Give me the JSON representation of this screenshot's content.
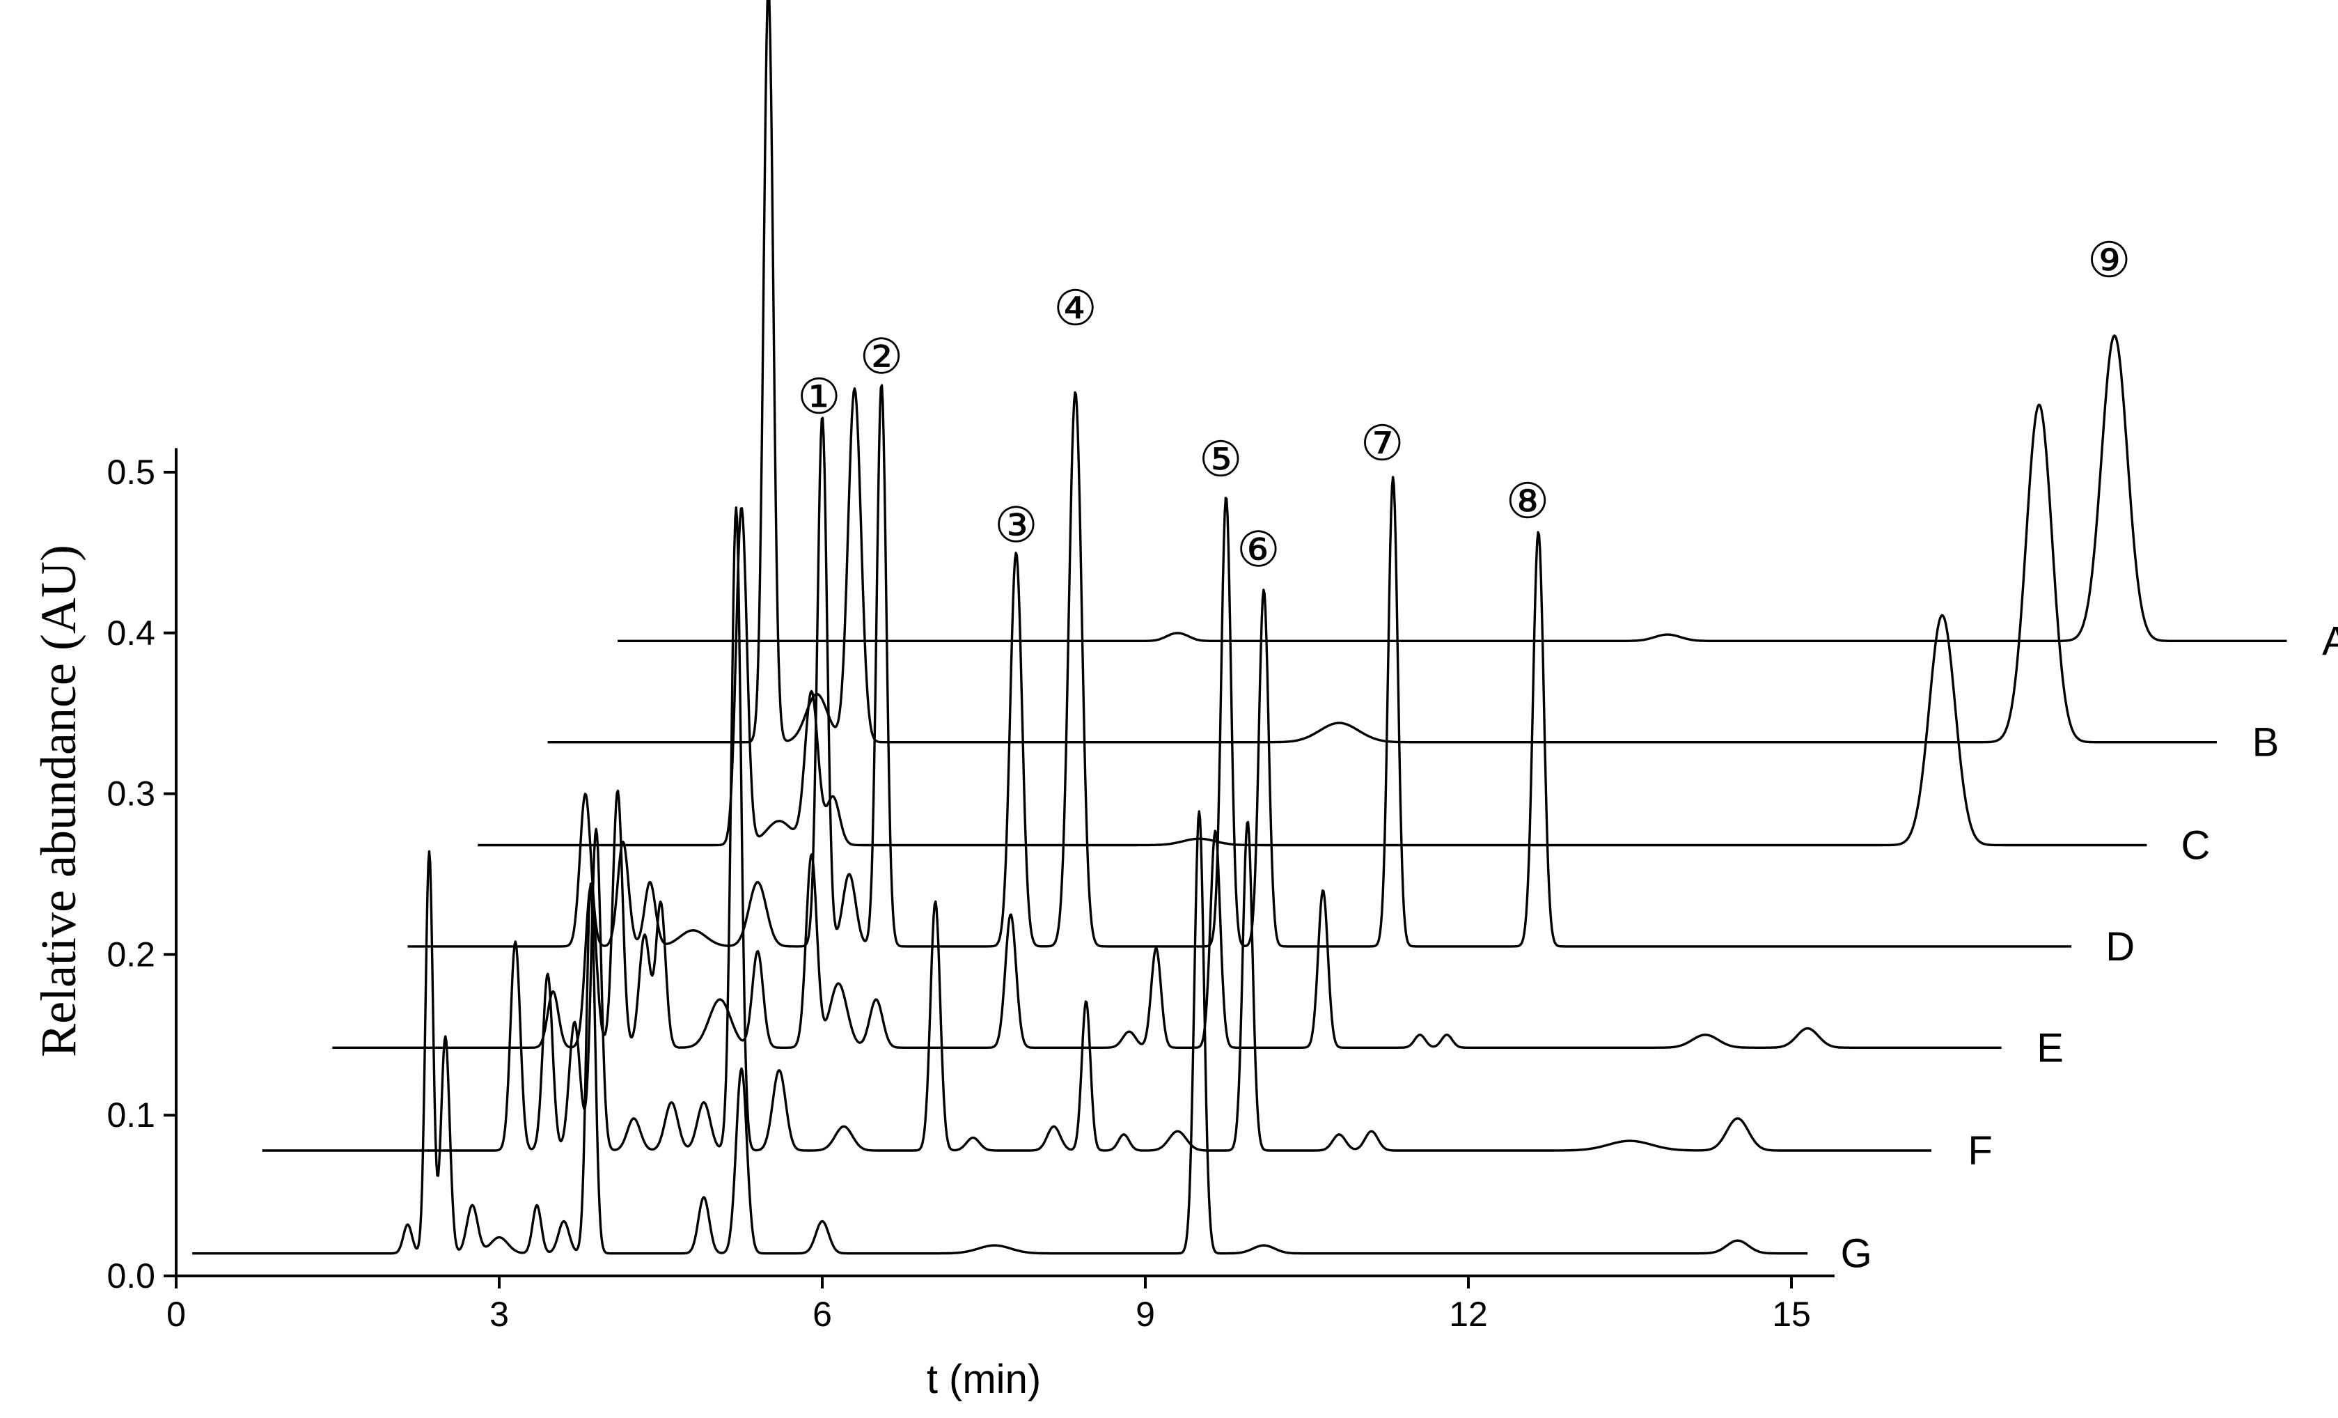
{
  "chart_data": {
    "type": "line",
    "title": "",
    "xlabel": "t (min)",
    "ylabel": "Relative abundance (AU)",
    "xlim": [
      0,
      15.4
    ],
    "ylim": [
      0,
      0.5
    ],
    "x_ticks": [
      "0",
      "3",
      "6",
      "9",
      "12",
      "15"
    ],
    "y_ticks": [
      "0.0",
      "0.1",
      "0.2",
      "0.3",
      "0.4",
      "0.5"
    ],
    "grid": false,
    "legend": "none",
    "stacked_offset": true,
    "series": [
      {
        "label": "A",
        "x_start": 4.1,
        "x_end": 19.6,
        "baseline": 0.395,
        "peaks": [
          [
            9.25,
            0.003,
            0.08
          ],
          [
            9.35,
            0.003,
            0.08
          ],
          [
            13.85,
            0.004,
            0.12
          ],
          [
            18.0,
            0.19,
            0.12
          ]
        ]
      },
      {
        "label": "B",
        "x_start": 3.45,
        "x_end": 18.95,
        "baseline": 0.332,
        "peaks": [
          [
            5.5,
            0.47,
            0.045
          ],
          [
            5.95,
            0.03,
            0.1
          ],
          [
            6.3,
            0.22,
            0.06
          ],
          [
            10.8,
            0.012,
            0.18
          ],
          [
            17.3,
            0.21,
            0.12
          ]
        ]
      },
      {
        "label": "C",
        "x_start": 2.8,
        "x_end": 18.3,
        "baseline": 0.268,
        "peaks": [
          [
            5.25,
            0.21,
            0.05
          ],
          [
            5.6,
            0.015,
            0.12
          ],
          [
            5.9,
            0.095,
            0.06
          ],
          [
            6.1,
            0.03,
            0.06
          ],
          [
            9.5,
            0.004,
            0.15
          ],
          [
            16.4,
            0.143,
            0.12
          ]
        ]
      },
      {
        "label": "D",
        "x_start": 2.15,
        "x_end": 17.6,
        "baseline": 0.205,
        "peaks": [
          [
            3.8,
            0.095,
            0.05
          ],
          [
            4.15,
            0.065,
            0.05
          ],
          [
            4.4,
            0.04,
            0.05
          ],
          [
            4.8,
            0.01,
            0.12
          ],
          [
            5.4,
            0.04,
            0.08
          ],
          [
            6.0,
            0.33,
            0.045
          ],
          [
            6.25,
            0.045,
            0.06
          ],
          [
            6.55,
            0.35,
            0.045
          ],
          [
            7.8,
            0.245,
            0.055
          ],
          [
            8.35,
            0.345,
            0.06
          ],
          [
            9.75,
            0.28,
            0.045
          ],
          [
            10.1,
            0.222,
            0.045
          ],
          [
            11.3,
            0.292,
            0.045
          ],
          [
            12.65,
            0.258,
            0.05
          ]
        ]
      },
      {
        "label": "E",
        "x_start": 1.45,
        "x_end": 16.95,
        "baseline": 0.142,
        "peaks": [
          [
            3.5,
            0.035,
            0.05
          ],
          [
            3.85,
            0.1,
            0.05
          ],
          [
            4.1,
            0.16,
            0.045
          ],
          [
            4.35,
            0.07,
            0.05
          ],
          [
            4.5,
            0.09,
            0.045
          ],
          [
            5.05,
            0.03,
            0.1
          ],
          [
            5.4,
            0.06,
            0.05
          ],
          [
            5.9,
            0.12,
            0.05
          ],
          [
            6.15,
            0.04,
            0.08
          ],
          [
            6.5,
            0.03,
            0.06
          ],
          [
            7.75,
            0.083,
            0.05
          ],
          [
            8.85,
            0.01,
            0.06
          ],
          [
            9.1,
            0.062,
            0.045
          ],
          [
            9.65,
            0.135,
            0.045
          ],
          [
            10.65,
            0.098,
            0.045
          ],
          [
            11.55,
            0.008,
            0.05
          ],
          [
            11.8,
            0.008,
            0.05
          ],
          [
            14.2,
            0.008,
            0.12
          ],
          [
            15.15,
            0.012,
            0.1
          ]
        ]
      },
      {
        "label": "F",
        "x_start": 0.8,
        "x_end": 16.3,
        "baseline": 0.078,
        "peaks": [
          [
            3.15,
            0.13,
            0.045
          ],
          [
            3.45,
            0.11,
            0.045
          ],
          [
            3.7,
            0.08,
            0.05
          ],
          [
            3.9,
            0.2,
            0.045
          ],
          [
            4.25,
            0.02,
            0.06
          ],
          [
            4.6,
            0.03,
            0.06
          ],
          [
            4.9,
            0.03,
            0.06
          ],
          [
            5.2,
            0.4,
            0.045
          ],
          [
            5.6,
            0.05,
            0.06
          ],
          [
            6.2,
            0.015,
            0.08
          ],
          [
            7.05,
            0.155,
            0.045
          ],
          [
            7.4,
            0.008,
            0.06
          ],
          [
            8.15,
            0.015,
            0.06
          ],
          [
            8.45,
            0.093,
            0.04
          ],
          [
            8.8,
            0.01,
            0.05
          ],
          [
            9.3,
            0.012,
            0.08
          ],
          [
            9.95,
            0.205,
            0.045
          ],
          [
            10.8,
            0.01,
            0.06
          ],
          [
            11.1,
            0.012,
            0.06
          ],
          [
            13.5,
            0.006,
            0.2
          ],
          [
            14.5,
            0.02,
            0.1
          ]
        ]
      },
      {
        "label": "G",
        "x_start": 0.15,
        "x_end": 15.15,
        "baseline": 0.014,
        "peaks": [
          [
            2.15,
            0.018,
            0.04
          ],
          [
            2.35,
            0.25,
            0.035
          ],
          [
            2.5,
            0.135,
            0.04
          ],
          [
            2.75,
            0.03,
            0.05
          ],
          [
            3.0,
            0.01,
            0.08
          ],
          [
            3.35,
            0.03,
            0.04
          ],
          [
            3.6,
            0.02,
            0.05
          ],
          [
            3.85,
            0.23,
            0.04
          ],
          [
            4.9,
            0.035,
            0.05
          ],
          [
            5.25,
            0.115,
            0.05
          ],
          [
            6.0,
            0.02,
            0.06
          ],
          [
            7.6,
            0.005,
            0.15
          ],
          [
            9.5,
            0.275,
            0.045
          ],
          [
            10.1,
            0.005,
            0.1
          ],
          [
            14.5,
            0.008,
            0.1
          ]
        ]
      }
    ],
    "annotations": [
      {
        "text": "①",
        "x": 5.97,
        "y": 0.547
      },
      {
        "text": "②",
        "x": 6.55,
        "y": 0.572
      },
      {
        "text": "③",
        "x": 7.8,
        "y": 0.467
      },
      {
        "text": "④",
        "x": 8.35,
        "y": 0.602
      },
      {
        "text": "⑤",
        "x": 9.7,
        "y": 0.508
      },
      {
        "text": "⑥",
        "x": 10.05,
        "y": 0.452
      },
      {
        "text": "⑦",
        "x": 11.2,
        "y": 0.518
      },
      {
        "text": "⑧",
        "x": 12.55,
        "y": 0.482
      },
      {
        "text": "⑨",
        "x": 17.95,
        "y": 0.632
      }
    ]
  }
}
